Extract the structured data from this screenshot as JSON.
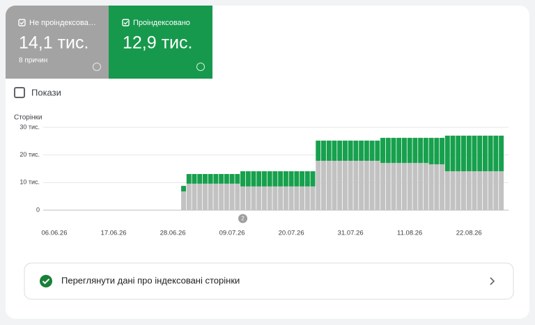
{
  "summary": [
    {
      "label": "Не проіндексова…",
      "value_text": "14,1 тис.",
      "note": "8 причин"
    },
    {
      "label": "Проіндексовано",
      "value_text": "12,9 тис."
    }
  ],
  "impressions_toggle": "Покази",
  "link_text": "Переглянути дані про індексовані сторінки",
  "chart_data": {
    "type": "bar",
    "stacked": true,
    "y_label": "Сторінки",
    "categories": [
      "06.06.26",
      null,
      null,
      null,
      null,
      null,
      null,
      null,
      null,
      null,
      null,
      "17.06.26",
      null,
      null,
      null,
      null,
      null,
      null,
      null,
      null,
      null,
      null,
      "28.06.26",
      null,
      null,
      null,
      null,
      null,
      null,
      null,
      null,
      null,
      null,
      "09.07.26",
      null,
      null,
      null,
      null,
      null,
      null,
      null,
      null,
      null,
      null,
      "20.07.26",
      null,
      null,
      null,
      null,
      null,
      null,
      null,
      null,
      null,
      null,
      "31.07.26",
      null,
      null,
      null,
      null,
      null,
      null,
      null,
      null,
      null,
      null,
      "11.08.26",
      null,
      null,
      null,
      null,
      null,
      null,
      null,
      null,
      null,
      null,
      "22.08.26",
      null,
      null,
      null,
      null,
      null,
      null
    ],
    "series": [
      {
        "color": "#c2c2c2",
        "values": [
          null,
          null,
          null,
          null,
          null,
          null,
          null,
          null,
          null,
          null,
          null,
          null,
          null,
          null,
          null,
          null,
          null,
          null,
          null,
          null,
          null,
          null,
          null,
          null,
          6.8,
          9.6,
          9.6,
          9.6,
          9.6,
          9.6,
          9.6,
          9.6,
          9.6,
          9.6,
          9.6,
          8.6,
          8.6,
          8.6,
          8.6,
          8.6,
          8.6,
          8.6,
          8.6,
          8.6,
          8.6,
          8.6,
          8.6,
          8.6,
          8.6,
          17.9,
          17.9,
          17.9,
          17.9,
          17.9,
          17.9,
          17.9,
          17.9,
          17.9,
          17.9,
          17.9,
          17.9,
          17.1,
          17.1,
          17.1,
          17.1,
          17.1,
          17.1,
          17.1,
          17.1,
          17.1,
          16.6,
          16.6,
          16.6,
          14.1,
          14.1,
          14.1,
          14.1,
          14.1,
          14.1,
          14.1,
          14.1,
          14.1,
          14.1,
          14.1
        ]
      },
      {
        "color": "#17a04d",
        "values": [
          null,
          null,
          null,
          null,
          null,
          null,
          null,
          null,
          null,
          null,
          null,
          null,
          null,
          null,
          null,
          null,
          null,
          null,
          null,
          null,
          null,
          null,
          null,
          null,
          2.0,
          3.5,
          3.5,
          3.5,
          3.5,
          3.5,
          3.5,
          3.5,
          3.5,
          3.5,
          3.5,
          5.5,
          5.5,
          5.5,
          5.5,
          5.5,
          5.5,
          5.5,
          5.5,
          5.5,
          5.5,
          5.5,
          5.5,
          5.5,
          5.5,
          7.3,
          7.3,
          7.3,
          7.3,
          7.3,
          7.3,
          7.3,
          7.3,
          7.3,
          7.3,
          7.3,
          7.3,
          9.1,
          9.1,
          9.1,
          9.1,
          9.1,
          9.1,
          9.1,
          9.1,
          9.1,
          9.6,
          9.6,
          9.6,
          12.9,
          12.9,
          12.9,
          12.9,
          12.9,
          12.9,
          12.9,
          12.9,
          12.9,
          12.9,
          12.9
        ]
      }
    ],
    "ylim": [
      0,
      30
    ],
    "yticks": [
      0,
      {
        "value": 10,
        "label": "10 тис."
      },
      {
        "value": 20,
        "label": "20 тис."
      },
      {
        "value": 30,
        "label": "30 тис."
      }
    ],
    "grid": true,
    "annotations": [
      {
        "category_index": 35,
        "text": "2"
      }
    ]
  }
}
